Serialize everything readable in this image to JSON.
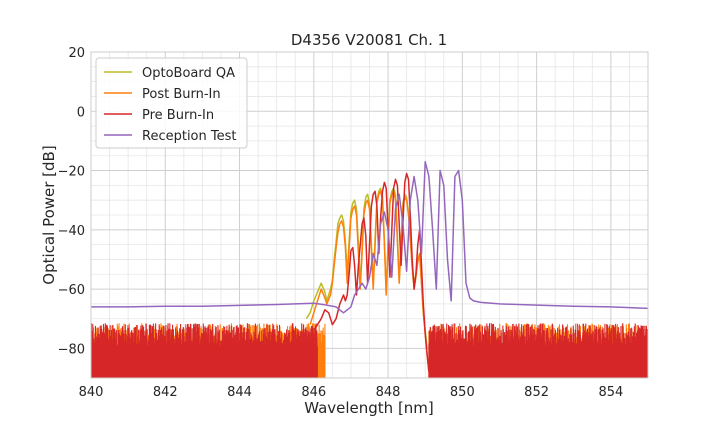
{
  "chart_data": {
    "type": "line",
    "title": "D4356 V20081 Ch. 1",
    "xlabel": "Wavelength [nm]",
    "ylabel": "Optical Power [dB]",
    "xlim": [
      840,
      855
    ],
    "ylim": [
      -90,
      20
    ],
    "x_ticks": [
      "840",
      "842",
      "844",
      "846",
      "848",
      "850",
      "852",
      "854"
    ],
    "y_ticks": [
      "20",
      "0",
      "−20",
      "−40",
      "−60",
      "−80"
    ],
    "grid": true,
    "legend_position": "top-left",
    "series": [
      {
        "name": "OptoBoard QA",
        "color": "#bcbd22",
        "x": [
          845.8,
          845.9,
          846.0,
          846.1,
          846.2,
          846.3,
          846.35,
          846.45,
          846.5,
          846.55,
          846.6,
          846.65,
          846.7,
          846.75,
          846.8,
          846.85,
          846.9,
          846.95,
          847.0,
          847.05,
          847.1,
          847.15,
          847.2,
          847.25,
          847.3,
          847.35,
          847.4,
          847.45,
          847.5,
          847.55,
          847.6,
          847.65,
          847.7,
          847.75,
          847.8,
          847.85,
          847.9,
          847.95,
          848.0,
          848.05,
          848.1,
          848.15,
          848.2,
          848.25,
          848.3,
          848.35,
          848.4,
          848.45,
          848.5,
          848.55,
          848.6,
          848.65,
          848.7,
          848.75,
          848.8,
          848.85,
          848.9,
          848.95,
          849.0,
          849.05
        ],
        "y": [
          -70,
          -68,
          -64,
          -61,
          -58,
          -61,
          -64,
          -60,
          -57,
          -50,
          -44,
          -38,
          -36,
          -35,
          -37,
          -44,
          -55,
          -44,
          -34,
          -31,
          -30,
          -33,
          -45,
          -58,
          -46,
          -33,
          -29,
          -28,
          -31,
          -45,
          -58,
          -43,
          -30,
          -27,
          -26,
          -29,
          -44,
          -61,
          -44,
          -30,
          -27,
          -26,
          -28,
          -42,
          -57,
          -44,
          -31,
          -28,
          -29,
          -34,
          -42,
          -52,
          -58,
          -55,
          -50,
          -48,
          -58,
          -68,
          -74,
          -80
        ]
      },
      {
        "name": "Post Burn-In",
        "color": "#ff7f0e",
        "x": [
          845.9,
          846.0,
          846.1,
          846.2,
          846.3,
          846.35,
          846.45,
          846.5,
          846.55,
          846.6,
          846.65,
          846.7,
          846.75,
          846.8,
          846.85,
          846.9,
          846.95,
          847.0,
          847.05,
          847.1,
          847.15,
          847.2,
          847.25,
          847.3,
          847.35,
          847.4,
          847.45,
          847.5,
          847.55,
          847.6,
          847.65,
          847.7,
          847.75,
          847.8,
          847.85,
          847.9,
          847.95,
          848.0,
          848.05,
          848.1,
          848.15,
          848.2,
          848.25,
          848.3,
          848.35,
          848.4,
          848.45,
          848.5,
          848.55,
          848.6,
          848.65,
          848.7,
          848.75,
          848.8,
          848.85,
          848.9,
          848.95,
          849.0,
          849.05,
          849.1
        ],
        "y": [
          -72,
          -68,
          -64,
          -60,
          -63,
          -65,
          -62,
          -58,
          -52,
          -46,
          -41,
          -38,
          -37,
          -39,
          -46,
          -58,
          -46,
          -36,
          -33,
          -32,
          -35,
          -48,
          -60,
          -48,
          -35,
          -31,
          -30,
          -33,
          -47,
          -60,
          -45,
          -31,
          -28,
          -27,
          -30,
          -45,
          -62,
          -45,
          -31,
          -28,
          -27,
          -30,
          -44,
          -58,
          -45,
          -32,
          -29,
          -30,
          -35,
          -43,
          -53,
          -60,
          -56,
          -51,
          -48,
          -58,
          -68,
          -75,
          -82,
          -88
        ]
      },
      {
        "name": "Pre Burn-In",
        "color": "#d62728",
        "x": [
          846.0,
          846.1,
          846.2,
          846.3,
          846.4,
          846.5,
          846.6,
          846.7,
          846.8,
          846.85,
          846.9,
          846.95,
          847.0,
          847.05,
          847.1,
          847.15,
          847.2,
          847.3,
          847.35,
          847.4,
          847.45,
          847.5,
          847.55,
          847.6,
          847.65,
          847.7,
          847.75,
          847.8,
          847.85,
          847.9,
          847.95,
          848.0,
          848.05,
          848.1,
          848.15,
          848.2,
          848.25,
          848.3,
          848.35,
          848.4,
          848.45,
          848.5,
          848.55,
          848.6,
          848.65,
          848.7,
          848.75,
          848.8,
          848.85,
          848.9,
          848.95,
          849.0,
          849.05,
          849.1
        ],
        "y": [
          -74,
          -72,
          -70,
          -67,
          -68,
          -72,
          -70,
          -65,
          -62,
          -64,
          -62,
          -55,
          -47,
          -46,
          -52,
          -62,
          -52,
          -38,
          -36,
          -42,
          -58,
          -45,
          -32,
          -28,
          -27,
          -32,
          -48,
          -36,
          -27,
          -24,
          -26,
          -40,
          -56,
          -40,
          -26,
          -23,
          -25,
          -38,
          -52,
          -38,
          -24,
          -21,
          -23,
          -35,
          -50,
          -60,
          -55,
          -45,
          -40,
          -52,
          -65,
          -75,
          -82,
          -88
        ]
      },
      {
        "name": "Reception Test",
        "color": "#9467bd",
        "x": [
          840.0,
          841.0,
          842.0,
          843.0,
          844.0,
          845.0,
          845.5,
          846.0,
          846.3,
          846.6,
          846.8,
          847.0,
          847.1,
          847.2,
          847.3,
          847.4,
          847.5,
          847.6,
          847.7,
          847.8,
          847.9,
          848.0,
          848.1,
          848.2,
          848.3,
          848.4,
          848.5,
          848.6,
          848.7,
          848.8,
          848.9,
          849.0,
          849.1,
          849.2,
          849.3,
          849.4,
          849.5,
          849.6,
          849.7,
          849.8,
          849.9,
          850.0,
          850.1,
          850.2,
          850.3,
          850.5,
          851.0,
          852.0,
          853.0,
          854.0,
          855.0
        ],
        "y": [
          -66,
          -66,
          -65.8,
          -65.8,
          -65.5,
          -65.2,
          -65,
          -64.8,
          -65.3,
          -66,
          -68,
          -66,
          -62,
          -60,
          -58,
          -60,
          -56,
          -48,
          -52,
          -38,
          -34,
          -40,
          -56,
          -33,
          -28,
          -38,
          -54,
          -30,
          -22,
          -30,
          -48,
          -17,
          -22,
          -40,
          -60,
          -20,
          -25,
          -50,
          -64,
          -22,
          -20,
          -30,
          -58,
          -63,
          -64,
          -64.5,
          -65,
          -65.4,
          -65.8,
          -66,
          -66.5
        ]
      }
    ]
  }
}
